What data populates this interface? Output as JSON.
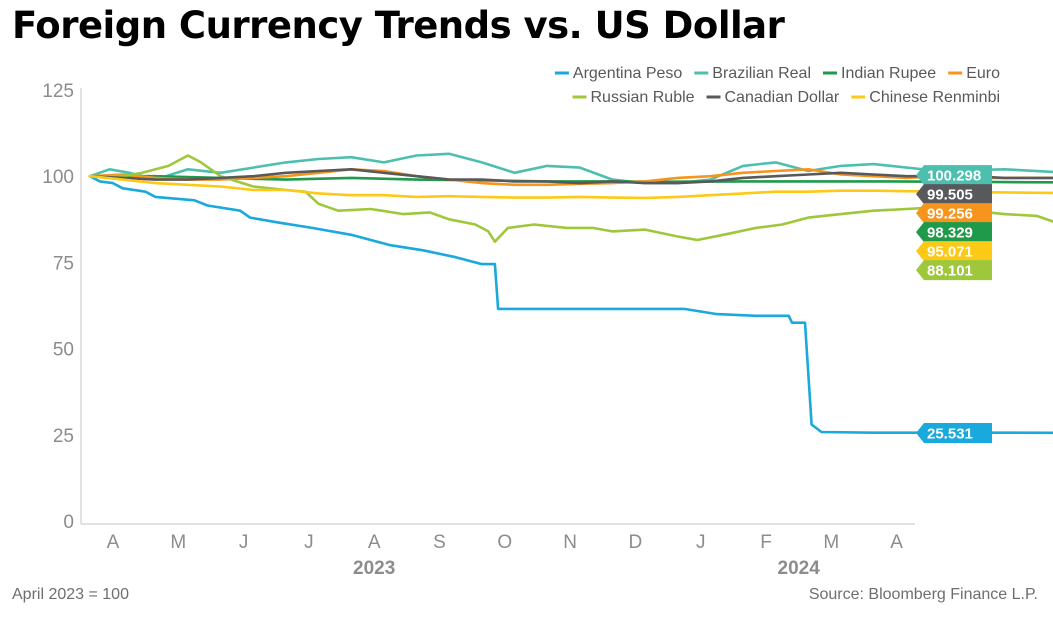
{
  "title": "Foreign Currency Trends vs. US Dollar",
  "base_note": "April 2023 = 100",
  "source_note": "Source: Bloomberg Finance L.P.",
  "chart_data": {
    "type": "line",
    "title": "Foreign Currency Trends vs. US Dollar",
    "ylim": [
      0,
      125
    ],
    "yticks": [
      0,
      25,
      50,
      75,
      100,
      125
    ],
    "x_tick_labels": [
      "A",
      "M",
      "J",
      "J",
      "A",
      "S",
      "O",
      "N",
      "D",
      "J",
      "F",
      "M",
      "A"
    ],
    "year_labels": [
      {
        "label": "2023",
        "at_month": 4
      },
      {
        "label": "2024",
        "at_month": 10.5
      }
    ],
    "x_unit": "months since April 2023",
    "grid": false,
    "legend_position": "top-right",
    "series": [
      {
        "name": "Argentina Peso",
        "color": "#1aa9dc",
        "last": 25.531,
        "last_label": "25.531",
        "points": [
          [
            0,
            100
          ],
          [
            0.15,
            98.5
          ],
          [
            0.35,
            98
          ],
          [
            0.5,
            96.5
          ],
          [
            0.85,
            95.5
          ],
          [
            1,
            94
          ],
          [
            1.6,
            93
          ],
          [
            1.8,
            91.5
          ],
          [
            2.3,
            90
          ],
          [
            2.45,
            88
          ],
          [
            2.9,
            86.5
          ],
          [
            3.4,
            85
          ],
          [
            4,
            83
          ],
          [
            4.6,
            80
          ],
          [
            5.1,
            78.5
          ],
          [
            5.6,
            76.5
          ],
          [
            6,
            74.5
          ],
          [
            6.2,
            74.5
          ],
          [
            6.25,
            61.5
          ],
          [
            7.5,
            61.5
          ],
          [
            9.1,
            61.5
          ],
          [
            9.6,
            60
          ],
          [
            10.2,
            59.5
          ],
          [
            10.7,
            59.5
          ],
          [
            10.75,
            57.5
          ],
          [
            10.95,
            57.5
          ],
          [
            11.05,
            28
          ],
          [
            11.2,
            25.8
          ],
          [
            12,
            25.6
          ],
          [
            14,
            25.6
          ],
          [
            15.3,
            25.55
          ],
          [
            15.55,
            25.531
          ]
        ]
      },
      {
        "name": "Brazilian Real",
        "color": "#4dbfae",
        "last": 100.298,
        "last_label": "100.298",
        "points": [
          [
            0,
            100
          ],
          [
            0.3,
            102
          ],
          [
            0.6,
            101
          ],
          [
            1,
            99
          ],
          [
            1.5,
            102
          ],
          [
            2,
            101
          ],
          [
            2.5,
            102.5
          ],
          [
            3,
            104
          ],
          [
            3.5,
            105
          ],
          [
            4,
            105.5
          ],
          [
            4.5,
            104
          ],
          [
            5,
            106
          ],
          [
            5.5,
            106.5
          ],
          [
            6,
            104
          ],
          [
            6.5,
            101
          ],
          [
            7,
            103
          ],
          [
            7.5,
            102.5
          ],
          [
            8,
            99
          ],
          [
            8.5,
            98
          ],
          [
            9,
            98
          ],
          [
            9.5,
            99
          ],
          [
            10,
            103
          ],
          [
            10.5,
            104
          ],
          [
            11,
            101.5
          ],
          [
            11.5,
            103
          ],
          [
            12,
            103.5
          ],
          [
            13,
            101.5
          ],
          [
            14,
            102
          ],
          [
            15,
            101
          ],
          [
            15.55,
            100.298
          ]
        ]
      },
      {
        "name": "Indian Rupee",
        "color": "#1e9a4a",
        "last": 98.329,
        "last_label": "98.329",
        "points": [
          [
            0,
            100
          ],
          [
            1,
            100
          ],
          [
            2,
            99.5
          ],
          [
            3,
            99
          ],
          [
            4,
            99.5
          ],
          [
            5,
            99
          ],
          [
            6,
            98.8
          ],
          [
            7,
            98.5
          ],
          [
            8,
            98.5
          ],
          [
            9,
            98.4
          ],
          [
            10,
            98.5
          ],
          [
            11,
            98.5
          ],
          [
            12,
            98.5
          ],
          [
            13,
            98.4
          ],
          [
            14,
            98.3
          ],
          [
            15,
            98.2
          ],
          [
            15.55,
            98.329
          ]
        ]
      },
      {
        "name": "Euro",
        "color": "#f7941d",
        "last": 99.256,
        "last_label": "99.256",
        "points": [
          [
            0,
            100
          ],
          [
            0.5,
            100.5
          ],
          [
            1,
            99.5
          ],
          [
            1.5,
            99
          ],
          [
            2,
            99
          ],
          [
            2.5,
            99.5
          ],
          [
            3,
            100
          ],
          [
            3.5,
            101
          ],
          [
            4,
            102
          ],
          [
            4.5,
            101.5
          ],
          [
            5,
            100
          ],
          [
            5.5,
            99
          ],
          [
            6,
            98
          ],
          [
            6.5,
            97.5
          ],
          [
            7,
            97.5
          ],
          [
            7.5,
            97.8
          ],
          [
            8,
            98
          ],
          [
            8.5,
            98.5
          ],
          [
            9,
            99.5
          ],
          [
            9.5,
            100
          ],
          [
            10,
            101
          ],
          [
            10.5,
            101.5
          ],
          [
            11,
            102
          ],
          [
            11.5,
            100.5
          ],
          [
            12,
            100
          ],
          [
            12.5,
            99.5
          ],
          [
            13,
            100
          ],
          [
            13.5,
            99.5
          ],
          [
            14,
            99.5
          ],
          [
            15,
            99.5
          ],
          [
            15.55,
            99.256
          ]
        ]
      },
      {
        "name": "Russian Ruble",
        "color": "#9fc73c",
        "last": 88.101,
        "last_label": "88.101",
        "points": [
          [
            0,
            100
          ],
          [
            0.5,
            100
          ],
          [
            0.8,
            101
          ],
          [
            1.2,
            103
          ],
          [
            1.5,
            106
          ],
          [
            1.7,
            104
          ],
          [
            2,
            100
          ],
          [
            2.5,
            97
          ],
          [
            3,
            96
          ],
          [
            3.3,
            95.5
          ],
          [
            3.5,
            92
          ],
          [
            3.8,
            90
          ],
          [
            4.3,
            90.5
          ],
          [
            4.8,
            89
          ],
          [
            5.2,
            89.5
          ],
          [
            5.5,
            87.5
          ],
          [
            5.9,
            86
          ],
          [
            6.1,
            84
          ],
          [
            6.2,
            81
          ],
          [
            6.4,
            85
          ],
          [
            6.8,
            86
          ],
          [
            7.3,
            85
          ],
          [
            7.7,
            85
          ],
          [
            8,
            84
          ],
          [
            8.5,
            84.5
          ],
          [
            9,
            82.5
          ],
          [
            9.3,
            81.5
          ],
          [
            9.7,
            83
          ],
          [
            10.2,
            85
          ],
          [
            10.6,
            86
          ],
          [
            11,
            88
          ],
          [
            11.5,
            89
          ],
          [
            12,
            90
          ],
          [
            12.5,
            90.5
          ],
          [
            13,
            91
          ],
          [
            13.5,
            90
          ],
          [
            14,
            89
          ],
          [
            14.5,
            88.5
          ],
          [
            14.8,
            86.5
          ],
          [
            15.2,
            88
          ],
          [
            15.55,
            88.101
          ]
        ]
      },
      {
        "name": "Canadian Dollar",
        "color": "#58595b",
        "last": 99.505,
        "last_label": "99.505",
        "points": [
          [
            0,
            100
          ],
          [
            0.5,
            99.5
          ],
          [
            1,
            99
          ],
          [
            1.5,
            99
          ],
          [
            2,
            99.5
          ],
          [
            2.5,
            100
          ],
          [
            3,
            101
          ],
          [
            3.5,
            101.5
          ],
          [
            4,
            102
          ],
          [
            4.5,
            101
          ],
          [
            5,
            100
          ],
          [
            5.5,
            99
          ],
          [
            6,
            99
          ],
          [
            6.5,
            98.5
          ],
          [
            7,
            98.5
          ],
          [
            7.5,
            98
          ],
          [
            8,
            98.5
          ],
          [
            8.5,
            98
          ],
          [
            9,
            98
          ],
          [
            9.5,
            98.5
          ],
          [
            10,
            99.5
          ],
          [
            10.5,
            100
          ],
          [
            11,
            100.5
          ],
          [
            11.5,
            101
          ],
          [
            12,
            100.5
          ],
          [
            12.5,
            100
          ],
          [
            13,
            100
          ],
          [
            13.5,
            100
          ],
          [
            14,
            99.5
          ],
          [
            15,
            99.5
          ],
          [
            15.55,
            99.505
          ]
        ]
      },
      {
        "name": "Chinese Renminbi",
        "color": "#fcc917",
        "last": 95.071,
        "last_label": "95.071",
        "points": [
          [
            0,
            100
          ],
          [
            0.5,
            99
          ],
          [
            1,
            98
          ],
          [
            1.5,
            97.5
          ],
          [
            2,
            97
          ],
          [
            2.5,
            96
          ],
          [
            3,
            96
          ],
          [
            3.5,
            95
          ],
          [
            4,
            94.5
          ],
          [
            4.5,
            94.5
          ],
          [
            5,
            94
          ],
          [
            5.5,
            94.2
          ],
          [
            6,
            94
          ],
          [
            6.5,
            93.8
          ],
          [
            7,
            93.8
          ],
          [
            7.5,
            94
          ],
          [
            8,
            93.8
          ],
          [
            8.5,
            93.7
          ],
          [
            9,
            94
          ],
          [
            9.5,
            94.5
          ],
          [
            10,
            95
          ],
          [
            10.5,
            95.5
          ],
          [
            11,
            95.5
          ],
          [
            11.5,
            95.8
          ],
          [
            12,
            95.8
          ],
          [
            13,
            95.5
          ],
          [
            14,
            95.3
          ],
          [
            15,
            95.1
          ],
          [
            15.55,
            95.071
          ]
        ]
      }
    ]
  }
}
